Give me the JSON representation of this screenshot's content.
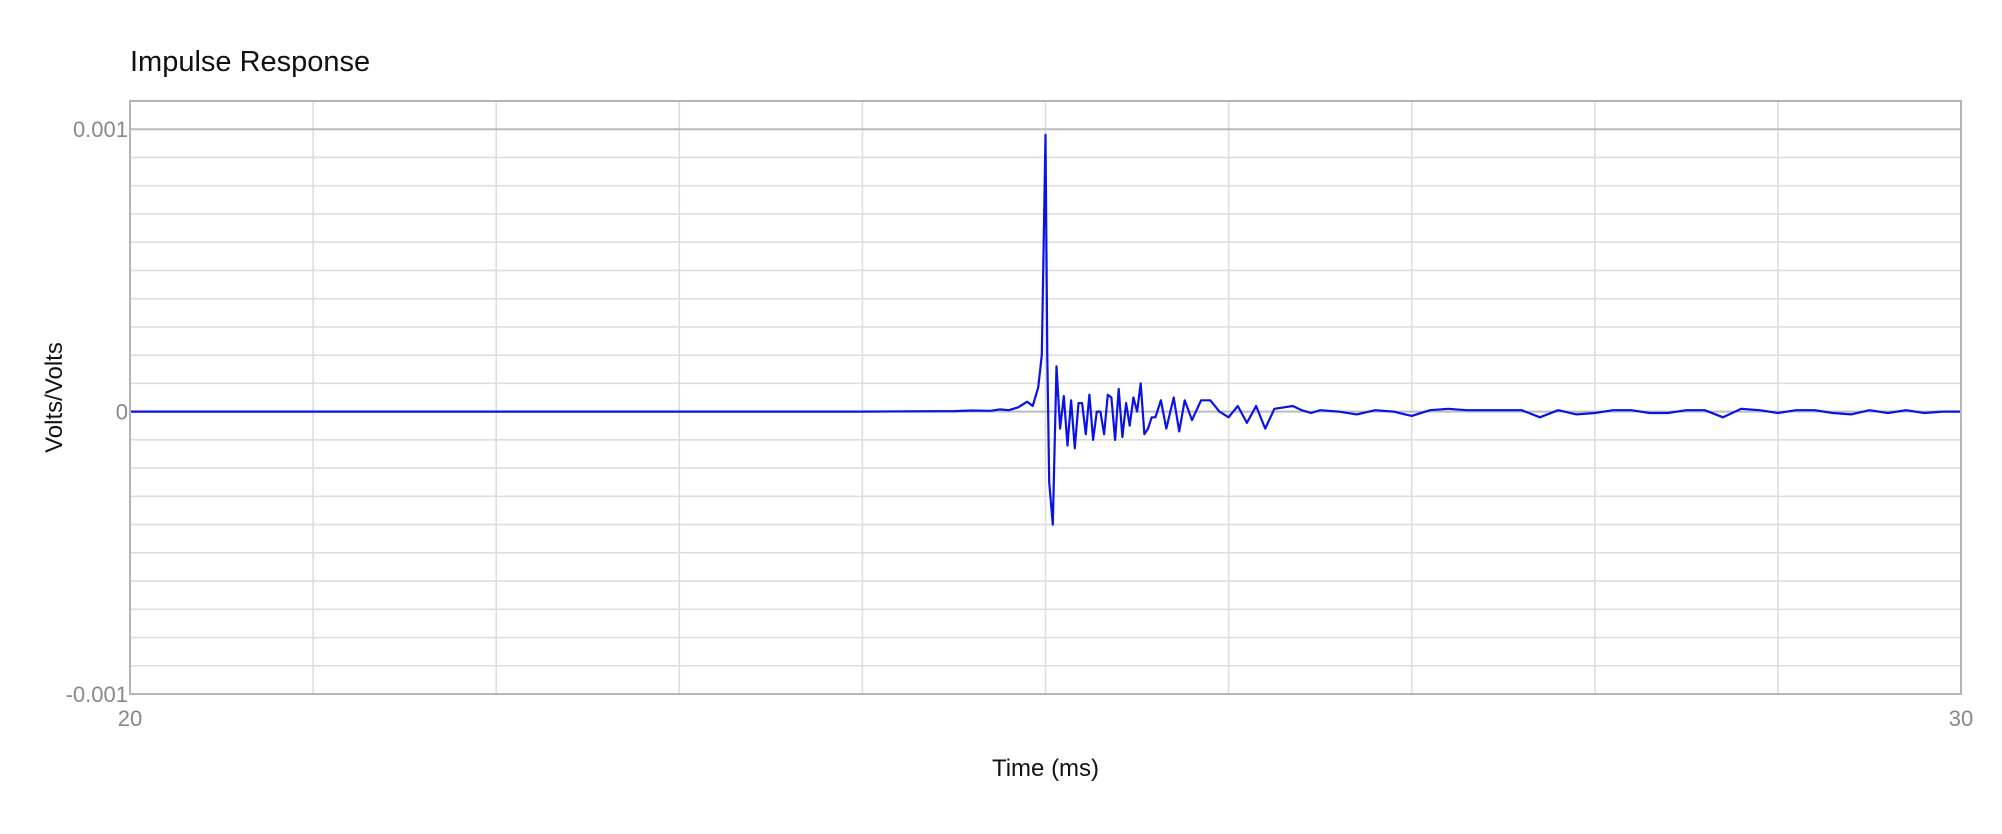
{
  "chart_data": {
    "type": "line",
    "title": "Impulse Response",
    "xlabel": "Time (ms)",
    "ylabel": "Volts/Volts",
    "xlim": [
      20,
      30
    ],
    "ylim": [
      -0.001,
      0.0011
    ],
    "x_ticks": [
      20,
      30
    ],
    "x_tick_labels": [
      "20",
      "30"
    ],
    "y_ticks": [
      0.001,
      0,
      -0.001
    ],
    "y_tick_labels": [
      "0.001",
      "0",
      "-0.001"
    ],
    "grid": true,
    "colors": {
      "line": "#0a12e8",
      "grid": "#dddddd",
      "major_grid": "#bbbbbb",
      "frame": "#b5b5b5"
    },
    "series": [
      {
        "x": [
          20,
          21,
          22,
          23,
          24,
          24.5,
          24.6,
          24.7,
          24.75,
          24.8,
          24.85,
          24.9,
          24.93,
          24.96,
          24.98,
          25.0,
          25.01,
          25.02,
          25.04,
          25.06,
          25.08,
          25.1,
          25.12,
          25.14,
          25.16,
          25.18,
          25.2,
          25.22,
          25.24,
          25.26,
          25.28,
          25.3,
          25.32,
          25.34,
          25.36,
          25.38,
          25.4,
          25.42,
          25.44,
          25.46,
          25.48,
          25.5,
          25.52,
          25.54,
          25.56,
          25.58,
          25.6,
          25.63,
          25.66,
          25.7,
          25.73,
          25.76,
          25.8,
          25.85,
          25.9,
          25.95,
          26.0,
          26.05,
          26.1,
          26.15,
          26.2,
          26.25,
          26.3,
          26.35,
          26.4,
          26.45,
          26.5,
          26.6,
          26.7,
          26.8,
          26.9,
          27.0,
          27.1,
          27.2,
          27.3,
          27.4,
          27.5,
          27.6,
          27.7,
          27.8,
          27.9,
          28.0,
          28.1,
          28.2,
          28.3,
          28.4,
          28.5,
          28.6,
          28.7,
          28.8,
          28.9,
          29.0,
          29.1,
          29.2,
          29.3,
          29.4,
          29.5,
          29.6,
          29.7,
          29.8,
          29.9,
          30.0
        ],
        "y": [
          0,
          0,
          0,
          0,
          0,
          2e-06,
          4e-06,
          3e-06,
          8e-06,
          5e-06,
          1.5e-05,
          3.5e-05,
          2e-05,
          8.5e-05,
          0.0002,
          0.00098,
          0.0002,
          -0.00025,
          -0.0004,
          0.00016,
          -6e-05,
          5.5e-05,
          -0.00012,
          4e-05,
          -0.00013,
          3e-05,
          3e-05,
          -8e-05,
          6e-05,
          -0.0001,
          0.0,
          0.0,
          -8e-05,
          6e-05,
          5e-05,
          -0.0001,
          8e-05,
          -9e-05,
          3e-05,
          -5e-05,
          5e-05,
          0.0,
          0.0001,
          -8e-05,
          -6e-05,
          -2e-05,
          -2e-05,
          4e-05,
          -6e-05,
          5e-05,
          -7e-05,
          4e-05,
          -3e-05,
          4e-05,
          4e-05,
          0.0,
          -2e-05,
          2e-05,
          -4e-05,
          2e-05,
          -6e-05,
          1e-05,
          1.5e-05,
          2e-05,
          5e-06,
          -5e-06,
          5e-06,
          0.0,
          -1e-05,
          5e-06,
          0.0,
          -1.5e-05,
          5e-06,
          1e-05,
          5e-06,
          5e-06,
          5e-06,
          5e-06,
          -2e-05,
          5e-06,
          -1e-05,
          -5e-06,
          5e-06,
          5e-06,
          -5e-06,
          -5e-06,
          5e-06,
          5e-06,
          -2e-05,
          1e-05,
          5e-06,
          -5e-06,
          5e-06,
          5e-06,
          -5e-06,
          -1e-05,
          5e-06,
          -5e-06,
          5e-06,
          -5e-06,
          0.0,
          0.0
        ]
      }
    ]
  }
}
